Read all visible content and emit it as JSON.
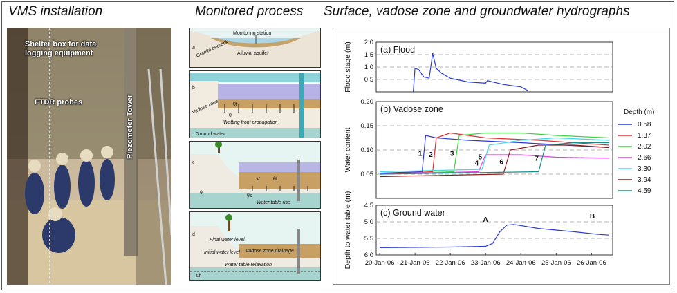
{
  "headings": {
    "installation": "VMS installation",
    "process": "Monitored process",
    "hydrographs": "Surface, vadose zone and groundwater hydrographs"
  },
  "photo": {
    "labels": {
      "shelter": "Shelter box for data logging equipment",
      "probes": "FTDR probes",
      "tower": "Piezometer Tower"
    }
  },
  "process_panels": {
    "a": {
      "letter": "a",
      "station": "Monitoring station",
      "bedrock": "Granite bedrock",
      "aquifer": "Alluvial aquifer"
    },
    "b": {
      "letter": "b",
      "vadose": "Vadose zone",
      "theta_f": "θf",
      "theta_i": "θi",
      "wetting": "Wetting front propagation",
      "groundwater": "Ground water"
    },
    "c": {
      "letter": "c",
      "theta_i": "θi",
      "theta_s": "θs",
      "v": "V",
      "theta_f": "θf",
      "rise": "Water table rise"
    },
    "d": {
      "letter": "d",
      "final": "Final water level",
      "initial": "Initial water level",
      "drainage": "Vadose zone drainage",
      "relaxation": "Water table relaxation",
      "dh": "Δh"
    }
  },
  "chart_data": [
    {
      "type": "line",
      "panel_label": "(a) Flood",
      "ylabel": "Flood stage (m)",
      "ylim": [
        0,
        2.0
      ],
      "yticks": [
        "0.5",
        "1.0",
        "1.5",
        "2.0"
      ],
      "series": [
        {
          "color": "#2a3ad8",
          "x": [
            0.95,
            1.0,
            1.1,
            1.25,
            1.4,
            1.5,
            1.6,
            1.75,
            2.0,
            2.5,
            3.0,
            3.05,
            3.5,
            4.0,
            4.2
          ],
          "y": [
            0.0,
            0.95,
            0.9,
            0.6,
            0.55,
            1.55,
            0.95,
            0.75,
            0.55,
            0.4,
            0.35,
            0.45,
            0.3,
            0.2,
            0.05
          ]
        }
      ]
    },
    {
      "type": "line",
      "panel_label": "(b) Vadose zone",
      "ylabel": "Water content",
      "ylim": [
        0.0,
        0.2
      ],
      "yticks": [
        "0.05",
        "0.10",
        "0.15",
        "0.20"
      ],
      "legend_title": "Depth (m)",
      "legend_placement": "right",
      "annotations": [
        "1",
        "2",
        "3",
        "4",
        "5",
        "6",
        "7"
      ],
      "series": [
        {
          "name": "0.58",
          "color": "#2a3ad8",
          "x": [
            0,
            1.2,
            1.3,
            1.6,
            2.5,
            4,
            6.5
          ],
          "y": [
            0.052,
            0.055,
            0.13,
            0.125,
            0.12,
            0.115,
            0.105
          ]
        },
        {
          "name": "1.37",
          "color": "#e03030",
          "x": [
            0,
            1.5,
            1.6,
            2.0,
            3,
            4.5,
            6.5
          ],
          "y": [
            0.05,
            0.055,
            0.125,
            0.135,
            0.125,
            0.12,
            0.11
          ]
        },
        {
          "name": "2.02",
          "color": "#38d838",
          "x": [
            0,
            2.1,
            2.25,
            3,
            4,
            5,
            6.5
          ],
          "y": [
            0.05,
            0.055,
            0.13,
            0.135,
            0.135,
            0.13,
            0.125
          ]
        },
        {
          "name": "2.66",
          "color": "#e040e0",
          "x": [
            0,
            2.8,
            3.0,
            4,
            5,
            6.5
          ],
          "y": [
            0.05,
            0.055,
            0.09,
            0.09,
            0.085,
            0.083
          ]
        },
        {
          "name": "3.30",
          "color": "#40d8e8",
          "x": [
            0,
            2.9,
            3.1,
            4,
            5,
            6.5
          ],
          "y": [
            0.055,
            0.06,
            0.11,
            0.12,
            0.125,
            0.12
          ]
        },
        {
          "name": "3.94",
          "color": "#8b1a1a",
          "x": [
            0,
            3.5,
            3.7,
            4.5,
            5.5,
            6.5
          ],
          "y": [
            0.045,
            0.05,
            0.1,
            0.11,
            0.11,
            0.105
          ]
        },
        {
          "name": "4.59",
          "color": "#1a8a8a",
          "x": [
            0,
            4.5,
            4.7,
            5.5,
            6.5
          ],
          "y": [
            0.05,
            0.055,
            0.11,
            0.115,
            0.115
          ]
        }
      ]
    },
    {
      "type": "line",
      "panel_label": "(c) Ground water",
      "ylabel": "Depth to water table (m)",
      "ylim": [
        6.0,
        4.5
      ],
      "yticks": [
        "4.5",
        "5.0",
        "5.5",
        "6.0"
      ],
      "annotations": [
        "A",
        "B"
      ],
      "categories": [
        "20-Jan-06",
        "21-Jan-06",
        "22-Jan-06",
        "23-Jan-06",
        "24-Jan-06",
        "25-Jan-06",
        "26-Jan-06"
      ],
      "series": [
        {
          "color": "#2a3ad8",
          "x": [
            0,
            2,
            3.0,
            3.2,
            3.4,
            3.6,
            3.8,
            4.5,
            5.5,
            6.2,
            6.5
          ],
          "y": [
            5.78,
            5.76,
            5.74,
            5.65,
            5.3,
            5.1,
            5.08,
            5.2,
            5.3,
            5.38,
            5.4
          ]
        }
      ]
    }
  ]
}
